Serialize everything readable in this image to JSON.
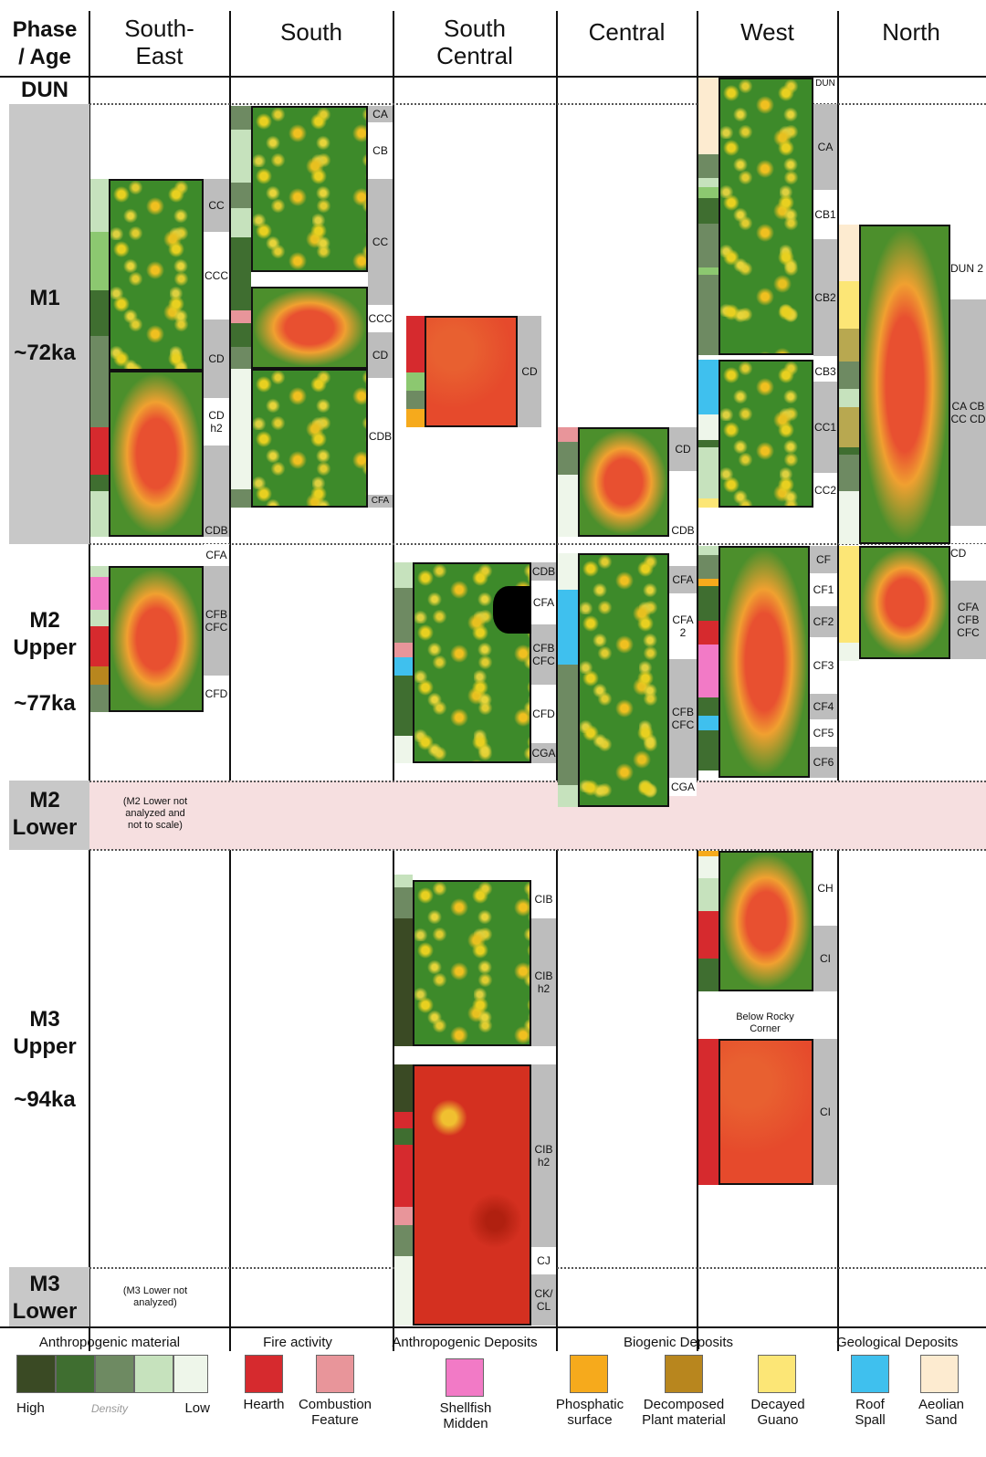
{
  "headers": {
    "phase_age": [
      "Phase",
      "/ Age"
    ],
    "south_east": [
      "South-",
      "East"
    ],
    "south": "South",
    "south_central": [
      "South",
      "Central"
    ],
    "central": "Central",
    "west": "West",
    "north": "North"
  },
  "phases": {
    "dun": "DUN",
    "m1": "M1",
    "m1_age": "~72ka",
    "m2u": [
      "M2",
      "Upper"
    ],
    "m2u_age": "~77ka",
    "m2l": [
      "M2",
      "Lower"
    ],
    "m3u": [
      "M3",
      "Upper"
    ],
    "m3u_age": "~94ka",
    "m3l": [
      "M3",
      "Lower"
    ]
  },
  "notes": {
    "m2_lower": [
      "(M2 Lower not",
      "analyzed and",
      "not to scale)"
    ],
    "m3_lower": [
      "(M3 Lower not",
      "analyzed)"
    ],
    "below_rocky": [
      "Below Rocky",
      "Corner"
    ]
  },
  "labels": {
    "se": [
      "CC",
      "CCC",
      "CD",
      "CD h2",
      "CDB",
      "CFA",
      "CFB CFC",
      "CFD"
    ],
    "s": [
      "CA",
      "CB",
      "CC",
      "CCC",
      "CD",
      "CDB",
      "CFA"
    ],
    "sc": [
      "CD",
      "CDB",
      "CFA",
      "CFB CFC",
      "CFD",
      "CGA",
      "CIB",
      "CIB h2",
      "CIB h2",
      "CJ",
      "CK/ CL"
    ],
    "c": [
      "CD",
      "CDB",
      "CFA",
      "CFA 2",
      "CFB CFC",
      "CGA"
    ],
    "w": [
      "DUN",
      "CA",
      "CB1",
      "CB2",
      "CB3",
      "CC1",
      "CC2",
      "CF",
      "CF1",
      "CF2",
      "CF3",
      "CF4",
      "CF5",
      "CF6",
      "CH",
      "CI",
      "CI"
    ],
    "n": [
      "DUN 2",
      "CA CB CC CD",
      "CD",
      "CFA CFB CFC"
    ]
  },
  "legend": {
    "anthro_title": "Anthropogenic material",
    "high": "High",
    "density": "Density",
    "low": "Low",
    "fire_title": "Fire activity",
    "hearth": "Hearth",
    "combustion": [
      "Combustion",
      "Feature"
    ],
    "anthro_dep_title": "Anthropogenic Deposits",
    "shellfish": [
      "Shellfish",
      "Midden"
    ],
    "biogenic_title": "Biogenic Deposits",
    "phosphatic": [
      "Phosphatic",
      "surface"
    ],
    "decomposed": [
      "Decomposed",
      "Plant material"
    ],
    "guano": [
      "Decayed",
      "Guano"
    ],
    "geo_title": "Geological Deposits",
    "roof": [
      "Roof",
      "Spall"
    ],
    "aeolian": [
      "Aeolian",
      "Sand"
    ]
  },
  "colors": {
    "density": [
      "#3a4a24",
      "#3f6e30",
      "#6e8a62",
      "#c6e2bd",
      "#eef6ea"
    ],
    "hearth": "#d62a2e",
    "combustion": "#e8959a",
    "shellfish": "#f27ac6",
    "phosphatic": "#f6aa1c",
    "decomposed": "#b8861e",
    "guano": "#fce676",
    "roof": "#3fc0ee",
    "aeolian": "#fdebd0"
  }
}
